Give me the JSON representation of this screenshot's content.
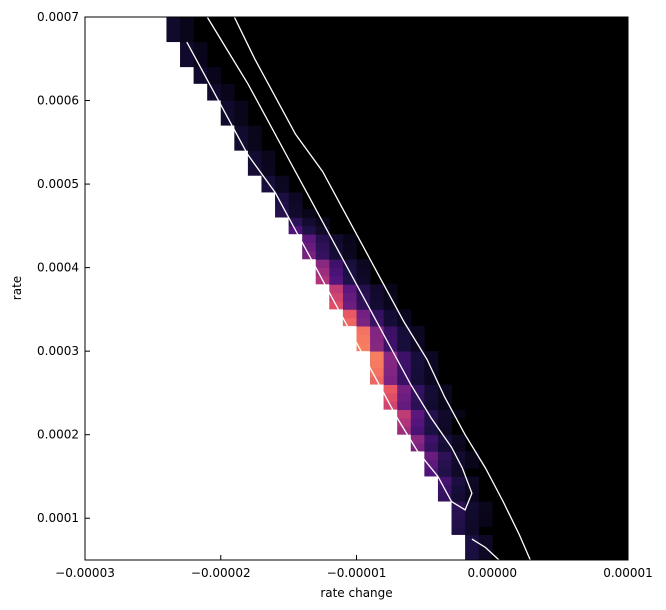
{
  "chart_data": {
    "type": "heatmap",
    "title": "",
    "xlabel": "rate change",
    "ylabel": "rate",
    "xlim": [
      -3e-05,
      1e-05
    ],
    "ylim": [
      5e-05,
      0.0007
    ],
    "x_ticks": [
      -3e-05,
      -2e-05,
      -1e-05,
      0.0,
      1e-05
    ],
    "x_tick_labels": [
      "−0.00003",
      "−0.00002",
      "−0.00001",
      "0.00000",
      "0.00001"
    ],
    "y_ticks": [
      0.0001,
      0.0002,
      0.0003,
      0.0004,
      0.0005,
      0.0006,
      0.0007
    ],
    "y_tick_labels": [
      "0.0001",
      "0.0002",
      "0.0003",
      "0.0004",
      "0.0005",
      "0.0006",
      "0.0007"
    ],
    "colormap": "magma",
    "background_color": "#000000",
    "masked_color": "#ffffff",
    "grid": false,
    "density_band": {
      "edge": [
        {
          "rate": 0.0007,
          "rate_change": -2.45e-05
        },
        {
          "rate": 0.00065,
          "rate_change": -2.3e-05
        },
        {
          "rate": 0.0006,
          "rate_change": -2.05e-05
        },
        {
          "rate": 0.00055,
          "rate_change": -1.9e-05
        },
        {
          "rate": 0.0005,
          "rate_change": -1.7e-05
        },
        {
          "rate": 0.00045,
          "rate_change": -1.5e-05
        },
        {
          "rate": 0.0004,
          "rate_change": -1.33e-05
        },
        {
          "rate": 0.00035,
          "rate_change": -1.13e-05
        },
        {
          "rate": 0.0003,
          "rate_change": -9.3e-06
        },
        {
          "rate": 0.00025,
          "rate_change": -8.3e-06
        },
        {
          "rate": 0.0002,
          "rate_change": -6.3e-06
        },
        {
          "rate": 0.00015,
          "rate_change": -4.3e-06
        },
        {
          "rate": 0.0001,
          "rate_change": -3e-06
        },
        {
          "rate": 5e-05,
          "rate_change": -1.5e-06
        }
      ],
      "peak_rate": 0.0003,
      "peak_value": 1.0
    },
    "contours": [
      {
        "level": "inner",
        "points": [
          [
            -2.25e-05,
            0.00067
          ],
          [
            -2.1e-05,
            0.000625
          ],
          [
            -1.95e-05,
            0.00058
          ],
          [
            -1.8e-05,
            0.000535
          ],
          [
            -1.6e-05,
            0.00049
          ],
          [
            -1.45e-05,
            0.000445
          ],
          [
            -1.3e-05,
            0.0004
          ],
          [
            -1.15e-05,
            0.000355
          ],
          [
            -1e-05,
            0.00031
          ],
          [
            -8.5e-06,
            0.000265
          ],
          [
            -7e-06,
            0.00022
          ],
          [
            -5.5e-06,
            0.00018
          ],
          [
            -4e-06,
            0.00015
          ],
          [
            -3e-06,
            0.00012
          ],
          [
            -2e-06,
            0.00011
          ],
          [
            -1.5e-06,
            0.00013
          ],
          [
            -2.2e-06,
            0.00016
          ],
          [
            -3e-06,
            0.000185
          ],
          [
            -4.5e-06,
            0.00022
          ],
          [
            -6e-06,
            0.00026
          ],
          [
            -7.5e-06,
            0.000305
          ],
          [
            -9e-06,
            0.00035
          ],
          [
            -1.05e-05,
            0.000395
          ],
          [
            -1.2e-05,
            0.00044
          ],
          [
            -1.35e-05,
            0.000485
          ],
          [
            -1.5e-05,
            0.00053
          ],
          [
            -1.65e-05,
            0.000575
          ],
          [
            -1.8e-05,
            0.00062
          ],
          [
            -1.95e-05,
            0.00066
          ],
          [
            -2.1e-05,
            0.0007
          ]
        ]
      },
      {
        "level": "outer",
        "points": [
          [
            -1.9e-05,
            0.0007
          ],
          [
            -1.75e-05,
            0.00065
          ],
          [
            -1.6e-05,
            0.000605
          ],
          [
            -1.45e-05,
            0.00056
          ],
          [
            -1.25e-05,
            0.000515
          ],
          [
            -1.1e-05,
            0.00047
          ],
          [
            -9.5e-06,
            0.000425
          ],
          [
            -8e-06,
            0.00038
          ],
          [
            -6.5e-06,
            0.000335
          ],
          [
            -4.8e-06,
            0.00029
          ],
          [
            -3.5e-06,
            0.000245
          ],
          [
            -2e-06,
            0.0002
          ],
          [
            -5e-07,
            0.00016
          ],
          [
            8e-07,
            0.00012
          ],
          [
            2e-06,
            8e-05
          ],
          [
            2.8e-06,
            5e-05
          ]
        ]
      },
      {
        "level": "lower-tail",
        "points": [
          [
            -1.5e-06,
            7.5e-05
          ],
          [
            -5e-07,
            6.5e-05
          ],
          [
            5e-07,
            5e-05
          ]
        ]
      }
    ]
  }
}
